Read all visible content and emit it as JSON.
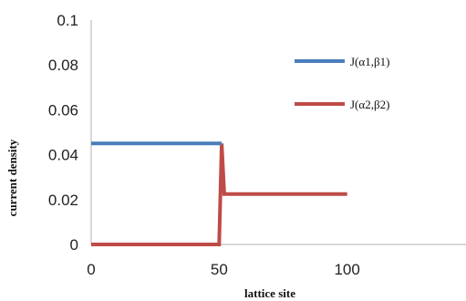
{
  "chart_data": {
    "type": "line",
    "xlabel": "lattice site",
    "ylabel": "current density",
    "xlim": [
      0,
      150
    ],
    "ylim": [
      0,
      0.1
    ],
    "x_ticks": [
      0,
      50,
      100
    ],
    "y_ticks": [
      0,
      0.02,
      0.04,
      0.06,
      0.08,
      0.1
    ],
    "x_tick_labels": [
      "0",
      "50",
      "100"
    ],
    "y_tick_labels": [
      "0",
      "0.02",
      "0.04",
      "0.06",
      "0.08",
      "0.1"
    ],
    "grid": false,
    "legend_position": "top-right",
    "series": [
      {
        "name": "J(α1,β1)",
        "color": "#4a7ebb",
        "x": [
          0,
          51
        ],
        "y": [
          0.045,
          0.045
        ]
      },
      {
        "name": "J(α2,β2)",
        "color": "#be4b48",
        "x": [
          0,
          50,
          51,
          52,
          100
        ],
        "y": [
          0,
          0,
          0.045,
          0.0225,
          0.0225
        ]
      }
    ]
  }
}
